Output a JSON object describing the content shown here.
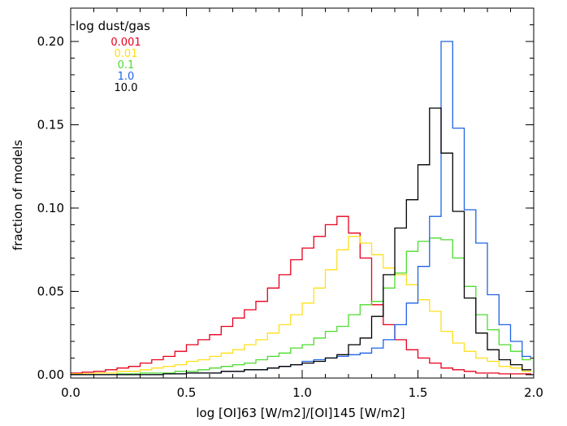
{
  "chart_data": {
    "type": "line",
    "title": "",
    "xlabel": "log [OI]63 [W/m2]/[OI]145 [W/m2]",
    "ylabel": "fraction of models",
    "xlim": [
      0.0,
      2.0
    ],
    "ylim": [
      -0.002,
      0.22
    ],
    "grid": false,
    "legend_title": "log dust/gas",
    "legend_position": "top-left",
    "x_ticks": [
      {
        "value": 0.0,
        "label": "0.0"
      },
      {
        "value": 0.5,
        "label": "0.5"
      },
      {
        "value": 1.0,
        "label": "1.0"
      },
      {
        "value": 1.5,
        "label": "1.5"
      },
      {
        "value": 2.0,
        "label": "2.0"
      }
    ],
    "y_ticks": [
      {
        "value": 0.0,
        "label": "0.00"
      },
      {
        "value": 0.05,
        "label": "0.05"
      },
      {
        "value": 0.1,
        "label": "0.10"
      },
      {
        "value": 0.15,
        "label": "0.15"
      },
      {
        "value": 0.2,
        "label": "0.20"
      }
    ],
    "x_minor_step": 0.1,
    "y_minor_step": 0.01,
    "bin_edges": [
      0.0,
      0.05,
      0.1,
      0.15,
      0.2,
      0.25,
      0.3,
      0.35,
      0.4,
      0.45,
      0.5,
      0.55,
      0.6,
      0.65,
      0.7,
      0.75,
      0.8,
      0.85,
      0.9,
      0.95,
      1.0,
      1.05,
      1.1,
      1.15,
      1.2,
      1.25,
      1.3,
      1.35,
      1.4,
      1.45,
      1.5,
      1.55,
      1.6,
      1.65,
      1.7,
      1.75,
      1.8,
      1.85,
      1.9,
      1.95,
      1.99
    ],
    "series": [
      {
        "name": "0.001",
        "color": "#e8001c",
        "values": [
          0.001,
          0.0015,
          0.002,
          0.003,
          0.004,
          0.005,
          0.007,
          0.009,
          0.011,
          0.014,
          0.018,
          0.021,
          0.024,
          0.029,
          0.034,
          0.039,
          0.044,
          0.052,
          0.06,
          0.069,
          0.076,
          0.083,
          0.09,
          0.095,
          0.085,
          0.07,
          0.042,
          0.03,
          0.021,
          0.015,
          0.01,
          0.007,
          0.004,
          0.003,
          0.002,
          0.001,
          0.001,
          0.0005,
          0.0005,
          0.0005
        ]
      },
      {
        "name": "0.01",
        "color": "#ffe01a",
        "values": [
          0.0005,
          0.0005,
          0.001,
          0.001,
          0.002,
          0.002,
          0.003,
          0.004,
          0.005,
          0.006,
          0.008,
          0.009,
          0.011,
          0.013,
          0.015,
          0.018,
          0.021,
          0.025,
          0.03,
          0.036,
          0.043,
          0.052,
          0.063,
          0.075,
          0.083,
          0.079,
          0.072,
          0.064,
          0.06,
          0.054,
          0.045,
          0.038,
          0.026,
          0.019,
          0.014,
          0.01,
          0.008,
          0.005,
          0.004,
          0.002
        ]
      },
      {
        "name": "0.1",
        "color": "#4ddb2e",
        "values": [
          0,
          0,
          0,
          0,
          0.0005,
          0.0005,
          0.001,
          0.001,
          0.001,
          0.002,
          0.002,
          0.003,
          0.004,
          0.005,
          0.006,
          0.007,
          0.009,
          0.011,
          0.013,
          0.016,
          0.018,
          0.022,
          0.026,
          0.029,
          0.036,
          0.042,
          0.044,
          0.052,
          0.061,
          0.074,
          0.08,
          0.082,
          0.081,
          0.07,
          0.053,
          0.036,
          0.027,
          0.018,
          0.014,
          0.009
        ]
      },
      {
        "name": "1.0",
        "color": "#1f63e6",
        "values": [
          0,
          0,
          0,
          0,
          0,
          0,
          0,
          0,
          0.0005,
          0.0005,
          0.001,
          0.001,
          0.001,
          0.002,
          0.002,
          0.003,
          0.003,
          0.004,
          0.005,
          0.006,
          0.008,
          0.009,
          0.01,
          0.011,
          0.012,
          0.013,
          0.016,
          0.021,
          0.03,
          0.043,
          0.065,
          0.095,
          0.2,
          0.148,
          0.099,
          0.079,
          0.048,
          0.03,
          0.02,
          0.011
        ]
      },
      {
        "name": "10.0",
        "color": "#000000",
        "values": [
          0,
          0,
          0,
          0,
          0,
          0,
          0,
          0,
          0.0005,
          0.0005,
          0.001,
          0.001,
          0.001,
          0.002,
          0.002,
          0.003,
          0.003,
          0.004,
          0.005,
          0.006,
          0.007,
          0.008,
          0.01,
          0.012,
          0.018,
          0.022,
          0.035,
          0.06,
          0.088,
          0.105,
          0.126,
          0.16,
          0.133,
          0.098,
          0.046,
          0.025,
          0.015,
          0.009,
          0.006,
          0.003
        ]
      }
    ]
  }
}
